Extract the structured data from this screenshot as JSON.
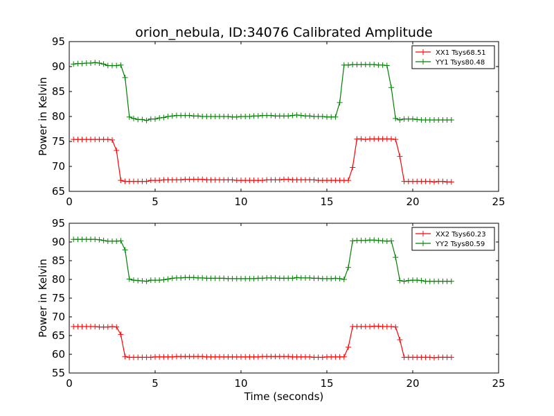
{
  "figure": {
    "title": "orion_nebula, ID:34076 Calibrated Amplitude"
  },
  "chart_data": [
    {
      "type": "line",
      "title": "orion_nebula, ID:34076 Calibrated Amplitude",
      "xlabel": "",
      "ylabel": "Power in Kelvin",
      "xlim": [
        0,
        25
      ],
      "ylim": [
        65,
        95
      ],
      "xticks": [
        "0",
        "5",
        "10",
        "15",
        "20",
        "25"
      ],
      "yticks": [
        "65",
        "70",
        "75",
        "80",
        "85",
        "90",
        "95"
      ],
      "legend_position": "top-right",
      "x": [
        0.25,
        0.5,
        0.75,
        1.0,
        1.25,
        1.5,
        1.75,
        2.0,
        2.25,
        2.5,
        2.75,
        3.0,
        3.25,
        3.5,
        3.75,
        4.0,
        4.25,
        4.5,
        4.75,
        5.0,
        5.25,
        5.5,
        5.75,
        6.0,
        6.25,
        6.5,
        6.75,
        7.0,
        7.25,
        7.5,
        7.75,
        8.0,
        8.25,
        8.5,
        8.75,
        9.0,
        9.25,
        9.5,
        9.75,
        10.0,
        10.25,
        10.5,
        10.75,
        11.0,
        11.25,
        11.5,
        11.75,
        12.0,
        12.25,
        12.5,
        12.75,
        13.0,
        13.25,
        13.5,
        13.75,
        14.0,
        14.25,
        14.5,
        14.75,
        15.0,
        15.25,
        15.5,
        15.75,
        16.0,
        16.25,
        16.5,
        16.75,
        17.0,
        17.25,
        17.5,
        17.75,
        18.0,
        18.25,
        18.5,
        18.75,
        19.0,
        19.25,
        19.5,
        19.75,
        20.0,
        20.25,
        20.5,
        20.75,
        21.0,
        21.25,
        21.5,
        21.75,
        22.0,
        22.25
      ],
      "series": [
        {
          "name": "XX1 Tsys68.51",
          "color": "#ff0000",
          "values": [
            75.4,
            75.4,
            75.4,
            75.4,
            75.4,
            75.4,
            75.4,
            75.4,
            75.4,
            75.3,
            73.2,
            67.2,
            67.0,
            67.0,
            67.0,
            67.0,
            67.0,
            67.0,
            67.2,
            67.2,
            67.2,
            67.3,
            67.3,
            67.3,
            67.3,
            67.3,
            67.4,
            67.4,
            67.4,
            67.4,
            67.4,
            67.3,
            67.3,
            67.3,
            67.3,
            67.3,
            67.3,
            67.3,
            67.2,
            67.2,
            67.2,
            67.2,
            67.2,
            67.2,
            67.2,
            67.3,
            67.3,
            67.3,
            67.3,
            67.4,
            67.4,
            67.3,
            67.3,
            67.3,
            67.3,
            67.3,
            67.3,
            67.2,
            67.2,
            67.2,
            67.2,
            67.2,
            67.2,
            67.2,
            67.2,
            69.8,
            75.5,
            75.5,
            75.4,
            75.5,
            75.5,
            75.5,
            75.5,
            75.5,
            75.5,
            75.4,
            72.0,
            67.0,
            67.0,
            67.0,
            67.0,
            67.0,
            67.0,
            67.0,
            66.9,
            67.0,
            67.0,
            66.9,
            66.9
          ]
        },
        {
          "name": "YY1 Tsys80.48",
          "color": "#008000",
          "values": [
            90.5,
            90.6,
            90.6,
            90.7,
            90.7,
            90.8,
            90.7,
            90.5,
            90.2,
            90.2,
            90.2,
            90.3,
            87.8,
            79.9,
            79.6,
            79.4,
            79.4,
            79.2,
            79.5,
            79.5,
            79.7,
            79.8,
            80.0,
            80.1,
            80.2,
            80.2,
            80.2,
            80.2,
            80.1,
            80.1,
            80.0,
            80.0,
            80.0,
            80.0,
            80.0,
            80.0,
            80.0,
            79.9,
            79.9,
            80.0,
            80.0,
            80.0,
            80.1,
            80.1,
            80.2,
            80.2,
            80.2,
            80.1,
            80.1,
            80.1,
            80.1,
            80.2,
            80.3,
            80.2,
            80.1,
            80.1,
            80.0,
            80.0,
            80.0,
            79.9,
            79.9,
            79.9,
            82.8,
            90.3,
            90.3,
            90.4,
            90.4,
            90.4,
            90.4,
            90.4,
            90.4,
            90.3,
            90.3,
            90.2,
            85.8,
            79.6,
            79.3,
            79.5,
            79.5,
            79.5,
            79.4,
            79.3,
            79.3,
            79.3,
            79.3,
            79.3,
            79.3,
            79.3,
            79.3
          ]
        }
      ]
    },
    {
      "type": "line",
      "title": "",
      "xlabel": "Time (seconds)",
      "ylabel": "Power in Kelvin",
      "xlim": [
        0,
        25
      ],
      "ylim": [
        55,
        95
      ],
      "xticks": [
        "0",
        "5",
        "10",
        "15",
        "20",
        "25"
      ],
      "yticks": [
        "55",
        "60",
        "65",
        "70",
        "75",
        "80",
        "85",
        "90",
        "95"
      ],
      "legend_position": "top-right",
      "x": [
        0.25,
        0.5,
        0.75,
        1.0,
        1.25,
        1.5,
        1.75,
        2.0,
        2.25,
        2.5,
        2.75,
        3.0,
        3.25,
        3.5,
        3.75,
        4.0,
        4.25,
        4.5,
        4.75,
        5.0,
        5.25,
        5.5,
        5.75,
        6.0,
        6.25,
        6.5,
        6.75,
        7.0,
        7.25,
        7.5,
        7.75,
        8.0,
        8.25,
        8.5,
        8.75,
        9.0,
        9.25,
        9.5,
        9.75,
        10.0,
        10.25,
        10.5,
        10.75,
        11.0,
        11.25,
        11.5,
        11.75,
        12.0,
        12.25,
        12.5,
        12.75,
        13.0,
        13.25,
        13.5,
        13.75,
        14.0,
        14.25,
        14.5,
        14.75,
        15.0,
        15.25,
        15.5,
        15.75,
        16.0,
        16.25,
        16.5,
        16.75,
        17.0,
        17.25,
        17.5,
        17.75,
        18.0,
        18.25,
        18.5,
        18.75,
        19.0,
        19.25,
        19.5,
        19.75,
        20.0,
        20.25,
        20.5,
        20.75,
        21.0,
        21.25,
        21.5,
        21.75,
        22.0,
        22.25
      ],
      "series": [
        {
          "name": "XX2 Tsys60.23",
          "color": "#ff0000",
          "values": [
            67.4,
            67.4,
            67.4,
            67.4,
            67.4,
            67.4,
            67.3,
            67.3,
            67.3,
            67.4,
            67.3,
            65.3,
            59.4,
            59.2,
            59.2,
            59.2,
            59.2,
            59.2,
            59.2,
            59.3,
            59.3,
            59.3,
            59.3,
            59.3,
            59.4,
            59.4,
            59.4,
            59.4,
            59.4,
            59.4,
            59.4,
            59.3,
            59.3,
            59.3,
            59.3,
            59.3,
            59.3,
            59.3,
            59.3,
            59.3,
            59.3,
            59.3,
            59.3,
            59.3,
            59.4,
            59.4,
            59.4,
            59.4,
            59.4,
            59.4,
            59.4,
            59.3,
            59.3,
            59.3,
            59.3,
            59.3,
            59.2,
            59.2,
            59.2,
            59.3,
            59.3,
            59.3,
            59.3,
            59.3,
            61.9,
            67.4,
            67.4,
            67.4,
            67.4,
            67.4,
            67.5,
            67.5,
            67.4,
            67.4,
            67.4,
            67.3,
            63.9,
            59.2,
            59.2,
            59.2,
            59.2,
            59.2,
            59.2,
            59.2,
            59.1,
            59.2,
            59.2,
            59.2,
            59.2
          ]
        },
        {
          "name": "YY2 Tsys80.59",
          "color": "#008000",
          "values": [
            90.7,
            90.7,
            90.7,
            90.7,
            90.7,
            90.7,
            90.6,
            90.4,
            90.2,
            90.2,
            90.2,
            90.3,
            87.9,
            80.1,
            79.8,
            79.7,
            79.6,
            79.5,
            79.8,
            79.8,
            79.8,
            79.9,
            80.1,
            80.3,
            80.4,
            80.4,
            80.5,
            80.5,
            80.5,
            80.4,
            80.4,
            80.3,
            80.3,
            80.3,
            80.3,
            80.3,
            80.2,
            80.2,
            80.2,
            80.2,
            80.2,
            80.2,
            80.2,
            80.3,
            80.3,
            80.4,
            80.4,
            80.4,
            80.3,
            80.3,
            80.3,
            80.3,
            80.5,
            80.4,
            80.4,
            80.4,
            80.3,
            80.3,
            80.2,
            80.2,
            80.2,
            80.3,
            80.2,
            80.0,
            83.2,
            90.3,
            90.4,
            90.4,
            90.4,
            90.5,
            90.5,
            90.4,
            90.3,
            90.2,
            90.3,
            85.9,
            79.7,
            79.5,
            79.7,
            79.8,
            79.8,
            79.7,
            79.5,
            79.5,
            79.5,
            79.5,
            79.5,
            79.5,
            79.5
          ]
        }
      ]
    }
  ]
}
